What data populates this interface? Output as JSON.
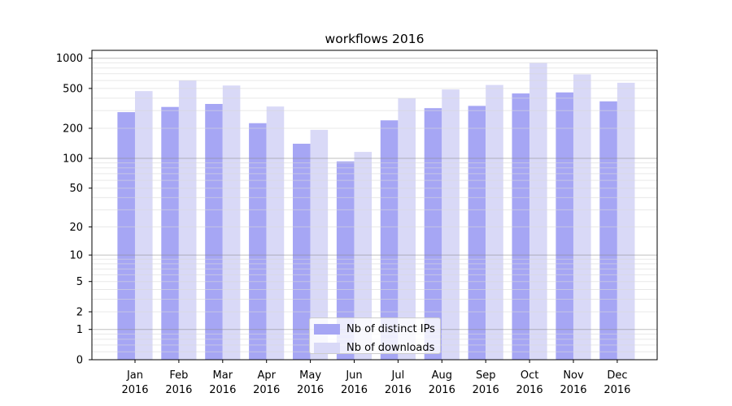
{
  "chart_data": {
    "type": "bar",
    "title": "workflows 2016",
    "x_categories": [
      "Jan",
      "Feb",
      "Mar",
      "Apr",
      "May",
      "Jun",
      "Jul",
      "Aug",
      "Sep",
      "Oct",
      "Nov",
      "Dec"
    ],
    "x_year": "2016",
    "series": [
      {
        "name": "Nb of distinct IPs",
        "color": "#a6a6f4",
        "values": [
          290,
          327,
          350,
          225,
          140,
          93,
          240,
          318,
          335,
          445,
          456,
          372
        ]
      },
      {
        "name": "Nb of downloads",
        "color": "#d9d9f7",
        "values": [
          470,
          600,
          535,
          330,
          193,
          116,
          400,
          488,
          542,
          898,
          690,
          570
        ]
      }
    ],
    "y_ticks": [
      1000,
      500,
      200,
      100,
      50,
      20,
      10,
      5,
      2,
      1,
      0
    ],
    "y_scale": "log10(value+1)",
    "ylim": [
      0,
      1200
    ],
    "grid": true,
    "legend_position": "lower center",
    "bar_width_fraction": 0.4
  },
  "colors": {
    "background": "#ffffff",
    "spine": "#000000",
    "grid_major": "#8a8a8a",
    "grid_minor": "#d9d9d9",
    "tick_text": "#000000",
    "legend_border": "#cccccc"
  }
}
